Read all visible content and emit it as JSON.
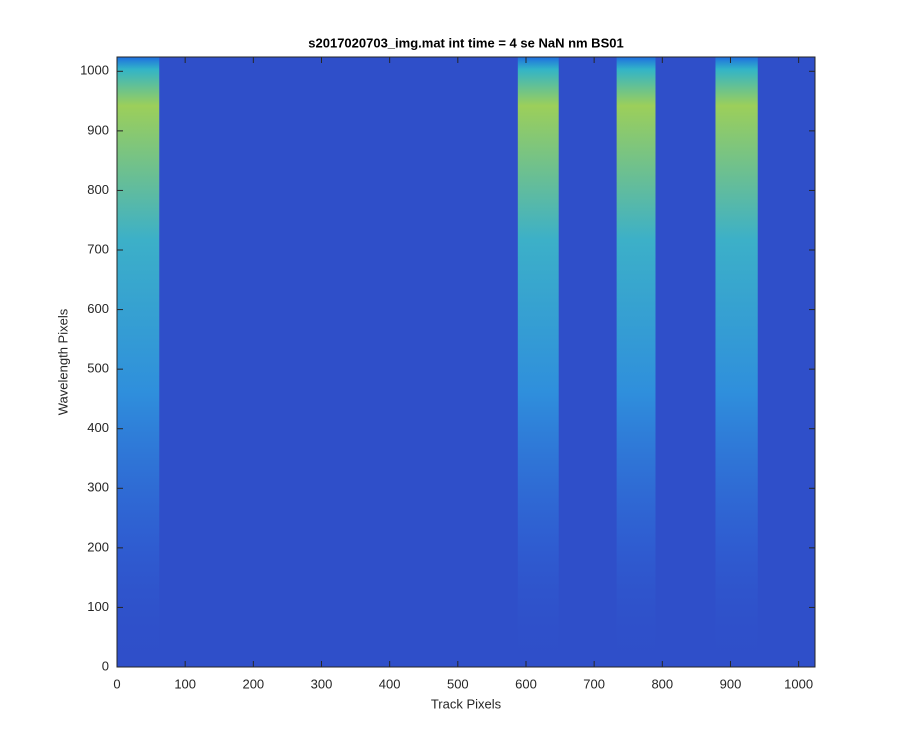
{
  "chart_data": {
    "type": "heatmap",
    "title": "s2017020703_img.mat int time = 4 se  NaN nm BS01",
    "x_label": "Track Pixels",
    "y_label": "Wavelength Pixels",
    "xlim": [
      0,
      1024
    ],
    "ylim": [
      0,
      1024
    ],
    "xticks": [
      0,
      100,
      200,
      300,
      400,
      500,
      600,
      700,
      800,
      900,
      1000
    ],
    "yticks": [
      0,
      100,
      200,
      300,
      400,
      500,
      600,
      700,
      800,
      900,
      1000
    ],
    "background_color": "#2f4fc9",
    "bands": [
      {
        "x": [
          0,
          62
        ]
      },
      {
        "x": [
          588,
          648
        ]
      },
      {
        "x": [
          733,
          790
        ]
      },
      {
        "x": [
          878,
          940
        ]
      }
    ]
  }
}
